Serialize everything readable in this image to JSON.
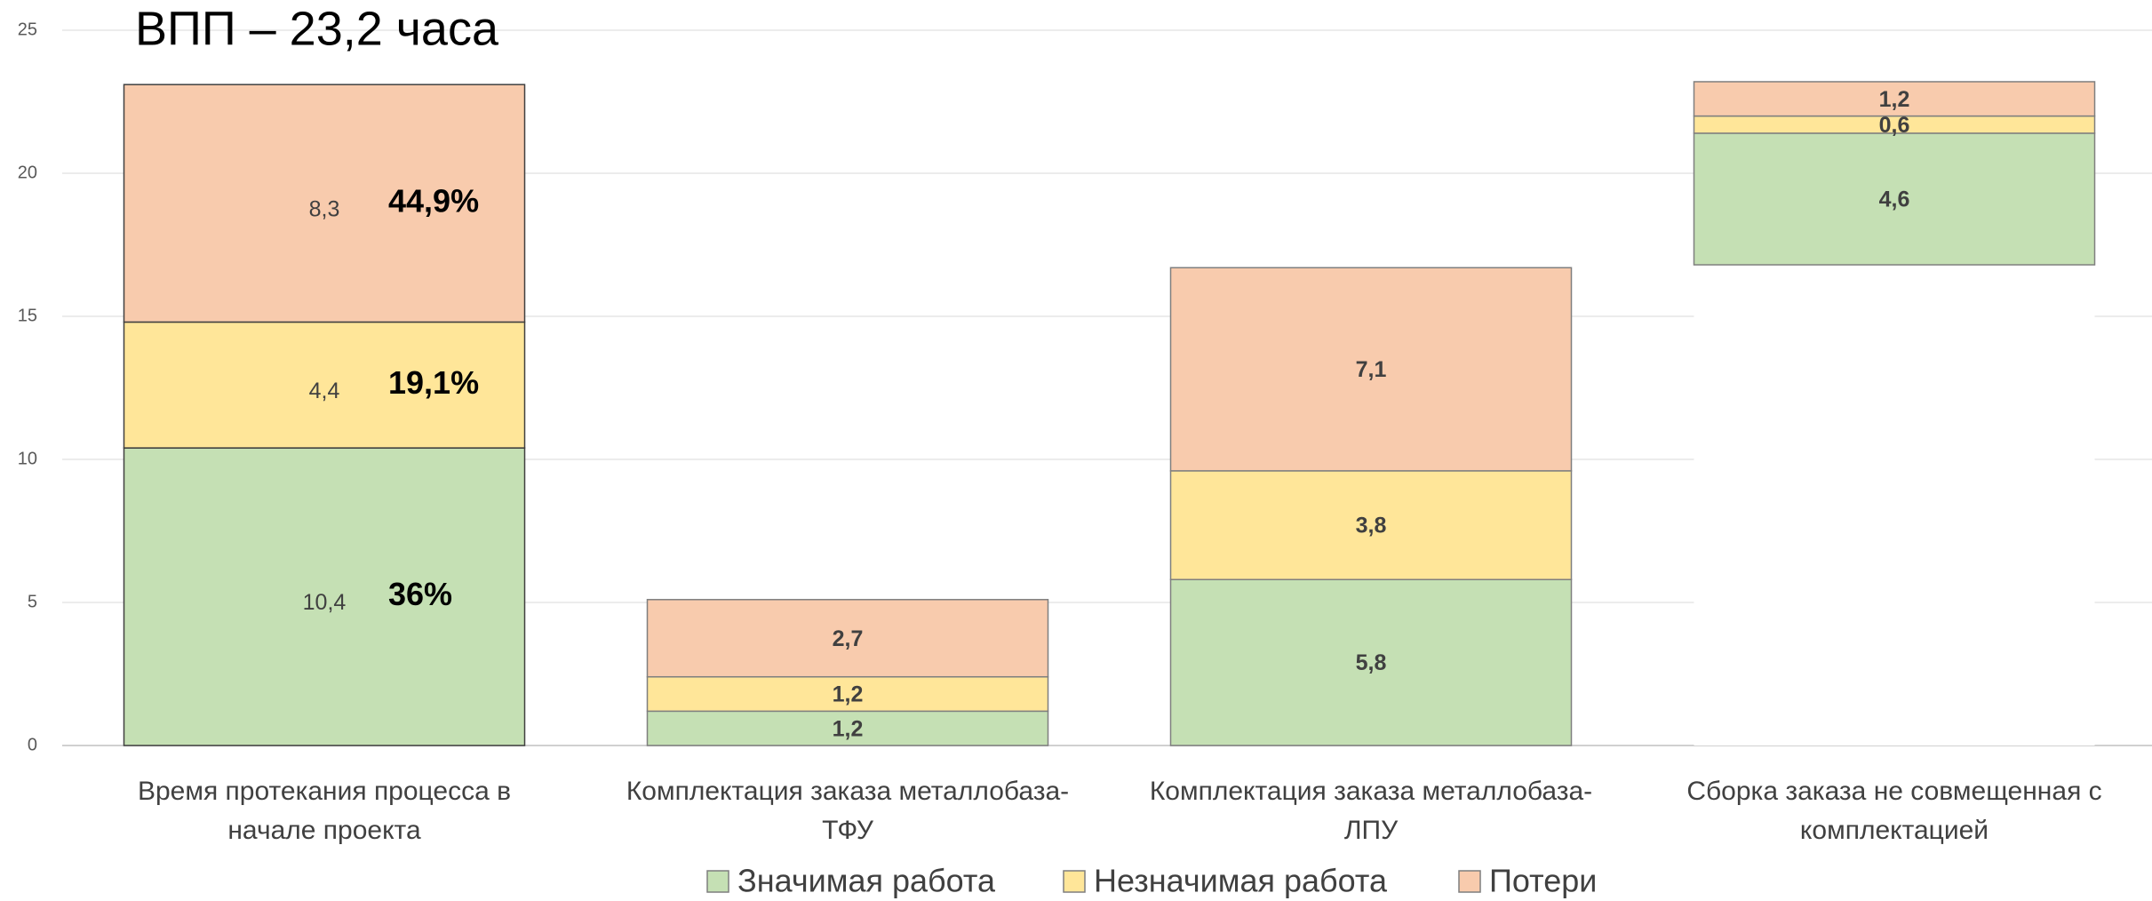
{
  "chart_data": {
    "type": "stacked-bar",
    "title": "ВПП – 23,2 часа",
    "categories": [
      [
        "Время протекания процесса в",
        "начале проекта"
      ],
      [
        "Комплектация заказа металлобаза-",
        "ТФУ"
      ],
      [
        "Комплектация заказа металлобаза-",
        "ЛПУ"
      ],
      [
        "Сборка заказа не совмещенная с",
        "комплектацией"
      ]
    ],
    "bases": [
      0,
      0,
      0,
      16.8
    ],
    "series": [
      {
        "name": "Значимая работа",
        "color": "#c5e0b4",
        "values": [
          10.4,
          1.2,
          5.8,
          4.6
        ],
        "value_labels": [
          "10,4",
          "1,2",
          "5,8",
          "4,6"
        ]
      },
      {
        "name": "Незначимая работа",
        "color": "#ffe699",
        "values": [
          4.4,
          1.2,
          3.8,
          0.6
        ],
        "value_labels": [
          "4,4",
          "1,2",
          "3,8",
          "0,6"
        ]
      },
      {
        "name": "Потери",
        "color": "#f8cbad",
        "values": [
          8.3,
          2.7,
          7.1,
          1.2
        ],
        "value_labels": [
          "8,3",
          "2,7",
          "7,1",
          "1,2"
        ]
      }
    ],
    "percent_labels": [
      "36%",
      "19,1%",
      "44,9%"
    ],
    "ylim": [
      0,
      25
    ],
    "yticks": [
      0,
      5,
      10,
      15,
      20,
      25
    ],
    "grid": true
  }
}
